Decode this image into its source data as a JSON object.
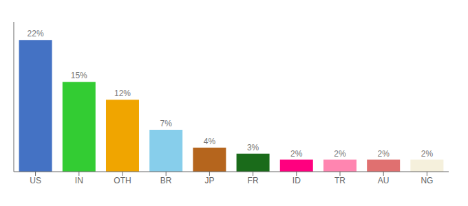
{
  "chart_data": {
    "type": "bar",
    "categories": [
      "US",
      "IN",
      "OTH",
      "BR",
      "JP",
      "FR",
      "ID",
      "TR",
      "AU",
      "NG"
    ],
    "values": [
      22,
      15,
      12,
      7,
      4,
      3,
      2,
      2,
      2,
      2
    ],
    "value_labels": [
      "22%",
      "15%",
      "12%",
      "7%",
      "4%",
      "3%",
      "2%",
      "2%",
      "2%",
      "2%"
    ],
    "colors": [
      "#4472c4",
      "#33cc33",
      "#f0a500",
      "#87ceeb",
      "#b5651d",
      "#1a6b1a",
      "#ff007f",
      "#ff85b0",
      "#e07070",
      "#f5f0dc"
    ],
    "ylim": [
      0,
      25
    ],
    "data_labels": true,
    "tick_labels": "x",
    "grid": false
  }
}
